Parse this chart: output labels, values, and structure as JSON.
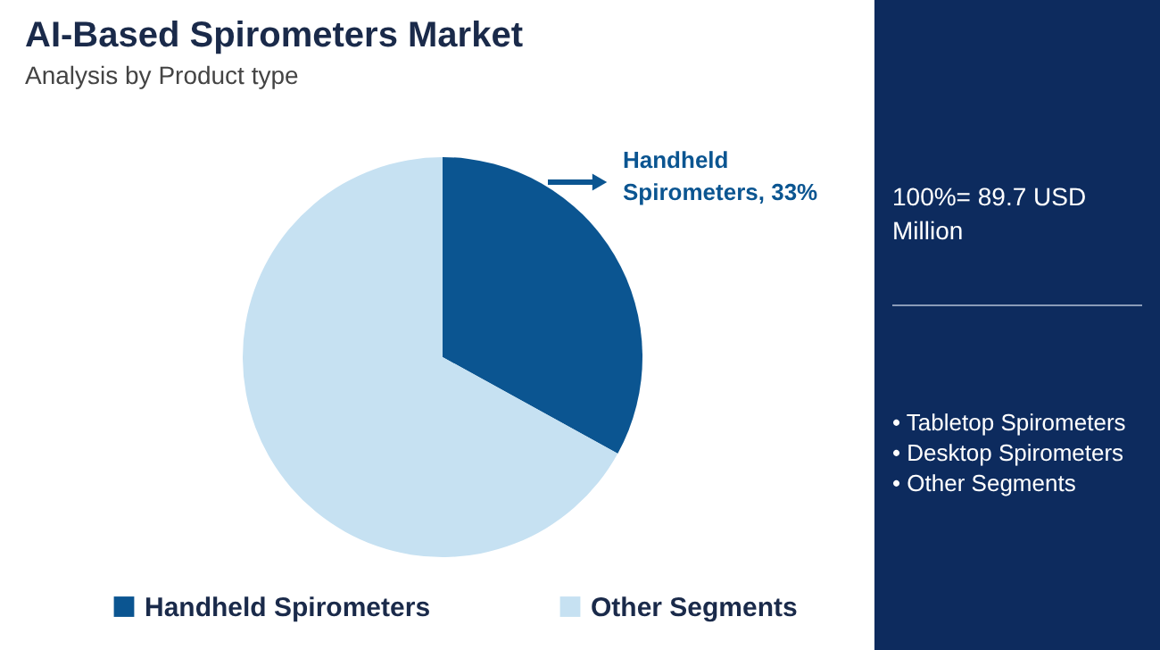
{
  "chart_data": {
    "type": "pie",
    "title": "AI-Based Spirometers Market",
    "subtitle": "Analysis by Product type",
    "categories": [
      "Handheld Spirometers",
      "Other Segments"
    ],
    "values": [
      33,
      67
    ],
    "colors": [
      "#0b5591",
      "#c6e1f2"
    ],
    "legend": "bottom",
    "annotations": [
      "Handheld\nSpirometers, 33%",
      "100%= 89.7 USD\nMillion",
      "• Tabletop Spirometers",
      "• Desktop Spirometers",
      "• Other Segments"
    ]
  }
}
